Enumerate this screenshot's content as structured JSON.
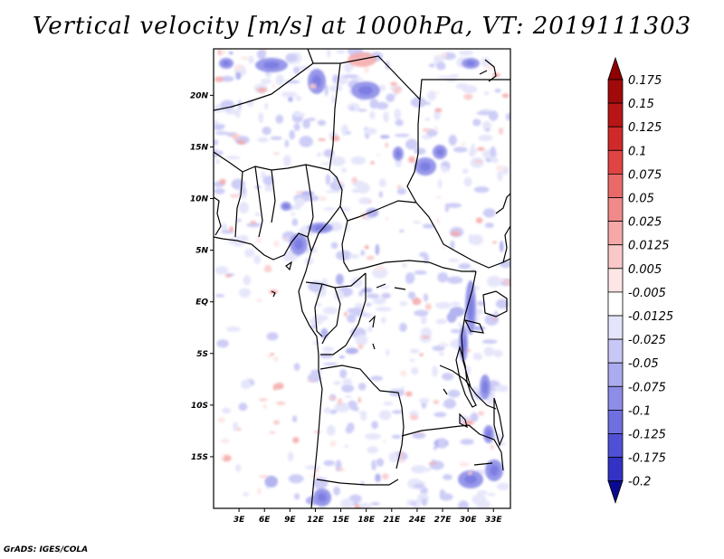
{
  "title": "Vertical velocity [m/s] at 1000hPa, VT: 2019111303",
  "footer": "GrADS: IGES/COLA",
  "map": {
    "lat_range": [
      -20,
      24.5
    ],
    "lon_range": [
      0,
      35
    ],
    "lat_ticks": [
      {
        "value": 20,
        "label": "20N"
      },
      {
        "value": 15,
        "label": "15N"
      },
      {
        "value": 10,
        "label": "10N"
      },
      {
        "value": 5,
        "label": "5N"
      },
      {
        "value": 0,
        "label": "EQ"
      },
      {
        "value": -5,
        "label": "5S"
      },
      {
        "value": -10,
        "label": "10S"
      },
      {
        "value": -15,
        "label": "15S"
      }
    ],
    "lon_ticks": [
      {
        "value": 3,
        "label": "3E"
      },
      {
        "value": 6,
        "label": "6E"
      },
      {
        "value": 9,
        "label": "9E"
      },
      {
        "value": 12,
        "label": "12E"
      },
      {
        "value": 15,
        "label": "15E"
      },
      {
        "value": 18,
        "label": "18E"
      },
      {
        "value": 21,
        "label": "21E"
      },
      {
        "value": 24,
        "label": "24E"
      },
      {
        "value": 27,
        "label": "27E"
      },
      {
        "value": 30,
        "label": "30E"
      },
      {
        "value": 33,
        "label": "33E"
      }
    ]
  },
  "colorbar": {
    "levels": [
      {
        "label": "0.175",
        "color": "#a00a0a"
      },
      {
        "label": "0.15",
        "color": "#b81616"
      },
      {
        "label": "0.125",
        "color": "#cf2a2a"
      },
      {
        "label": "0.1",
        "color": "#e04444"
      },
      {
        "label": "0.075",
        "color": "#ea6a6a"
      },
      {
        "label": "0.05",
        "color": "#f08a8a"
      },
      {
        "label": "0.025",
        "color": "#f5a8a8"
      },
      {
        "label": "0.0125",
        "color": "#f9c8c8"
      },
      {
        "label": "0.005",
        "color": "#fde6e6"
      },
      {
        "label": "-0.005",
        "color": "#ffffff"
      },
      {
        "label": "-0.0125",
        "color": "#e4e4fb"
      },
      {
        "label": "-0.025",
        "color": "#c8c8f6"
      },
      {
        "label": "-0.05",
        "color": "#ababef"
      },
      {
        "label": "-0.075",
        "color": "#8d8de8"
      },
      {
        "label": "-0.1",
        "color": "#6f6fe0"
      },
      {
        "label": "-0.125",
        "color": "#5050d6"
      },
      {
        "label": "-0.175",
        "color": "#3232c4"
      },
      {
        "label": "-0.2",
        "color": "#1c1caa"
      }
    ],
    "top_color": "#8f0000",
    "bottom_color": "#0a0a90"
  }
}
